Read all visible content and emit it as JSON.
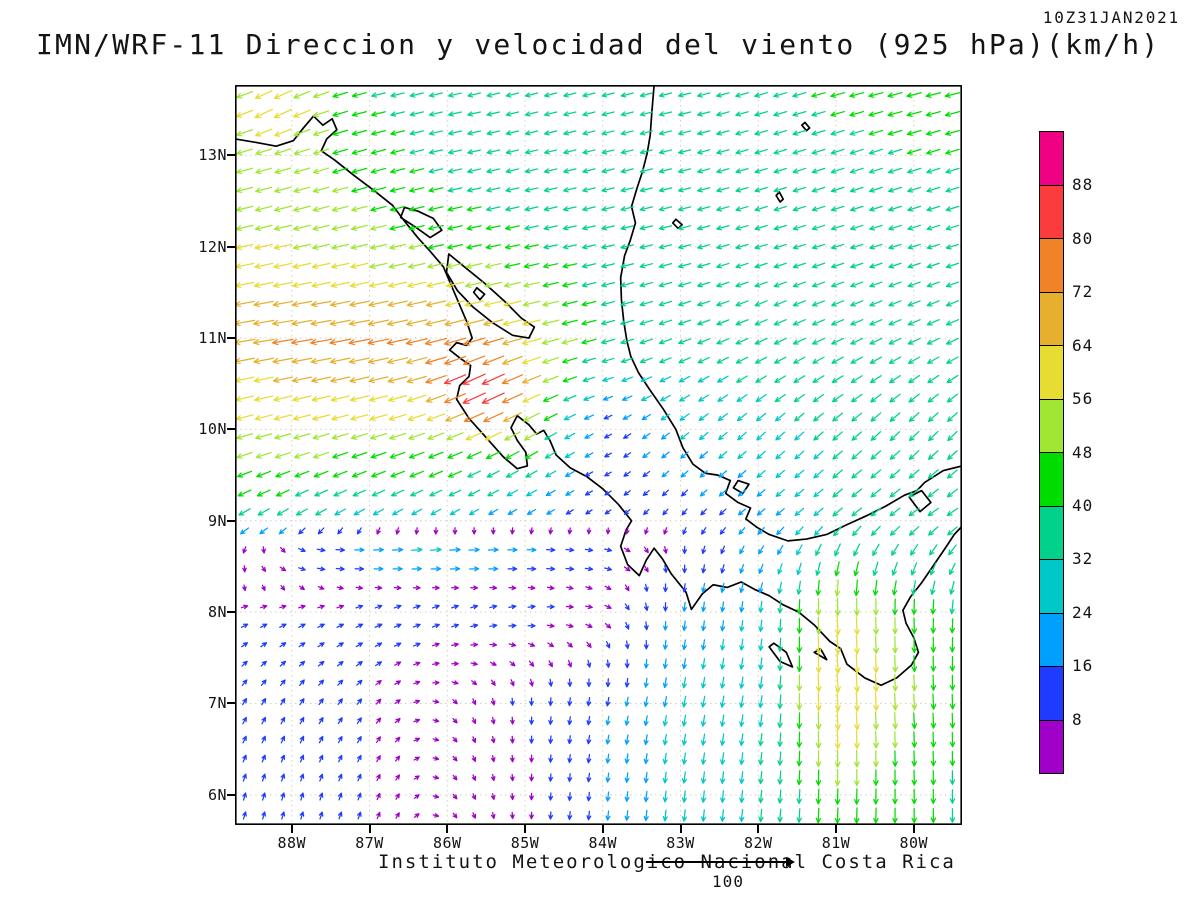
{
  "header": {
    "title": "IMN/WRF-11 Direccion y velocidad del viento (925 hPa)(km/h)",
    "datestamp": "10Z31JAN2021"
  },
  "footer": {
    "caption": "Instituto Meteorologico Nacional Costa Rica",
    "reference_label": "100"
  },
  "axes": {
    "lat_labels": [
      "13N",
      "12N",
      "11N",
      "10N",
      "9N",
      "8N",
      "7N",
      "6N"
    ],
    "lat_values": [
      13,
      12,
      11,
      10,
      9,
      8,
      7,
      6
    ],
    "lon_labels": [
      "88W",
      "87W",
      "86W",
      "85W",
      "84W",
      "83W",
      "82W",
      "81W",
      "80W"
    ],
    "lon_values": [
      -88,
      -87,
      -86,
      -85,
      -84,
      -83,
      -82,
      -81,
      -80
    ]
  },
  "chart_data": {
    "type": "vector_field",
    "variable": "Direccion y velocidad del viento",
    "level": "925 hPa",
    "units": "km/h",
    "reference_speed": 100,
    "domain": {
      "lon_min": -88.73,
      "lon_max": -79.38,
      "lat_min": 5.67,
      "lat_max": 13.77
    },
    "speed_levels": [
      8,
      16,
      24,
      32,
      40,
      48,
      56,
      64,
      72,
      80,
      88
    ],
    "speed_colors": [
      "#a000c8",
      "#1e3cff",
      "#00a0ff",
      "#00c8c8",
      "#00d28c",
      "#00dc00",
      "#a0e632",
      "#e6dc32",
      "#e6af2d",
      "#f08228",
      "#fa3c3c",
      "#f00082"
    ],
    "grid": {
      "lons": [
        -89,
        -88,
        -87,
        -86,
        -85,
        -84,
        -83,
        -82,
        -81,
        -80,
        -79
      ],
      "lats": [
        14,
        13,
        12,
        11,
        10,
        9,
        8,
        7,
        6
      ],
      "u": [
        [
          -40,
          -50,
          -38,
          -35,
          -33,
          -32,
          -33,
          -36,
          -42,
          -45,
          -45
        ],
        [
          -48,
          -48,
          -42,
          -36,
          -33,
          -32,
          -32,
          -33,
          -36,
          -38,
          -38
        ],
        [
          -55,
          -55,
          -50,
          -45,
          -40,
          -35,
          -33,
          -33,
          -33,
          -33,
          -33
        ],
        [
          -70,
          -72,
          -72,
          -74,
          -62,
          -38,
          -33,
          -33,
          -33,
          -33,
          -33
        ],
        [
          -52,
          -52,
          -52,
          -50,
          -45,
          -10,
          -20,
          -22,
          -25,
          -25,
          -25
        ],
        [
          -30,
          -30,
          -28,
          -25,
          -18,
          -8,
          -6,
          -15,
          -25,
          -28,
          -28
        ],
        [
          8,
          8,
          10,
          10,
          10,
          8,
          -2,
          -3,
          0,
          0,
          -5
        ],
        [
          5,
          5,
          5,
          3,
          0,
          -3,
          -5,
          -5,
          0,
          3,
          0
        ],
        [
          3,
          3,
          3,
          2,
          0,
          -2,
          -3,
          -3,
          -2,
          0,
          0
        ]
      ],
      "v": [
        [
          -8,
          -20,
          -8,
          -8,
          -8,
          -8,
          -8,
          -10,
          -10,
          -10,
          -10
        ],
        [
          -12,
          -15,
          -12,
          -8,
          -8,
          -8,
          -8,
          -10,
          -12,
          -12,
          -12
        ],
        [
          -12,
          -12,
          -12,
          -10,
          -8,
          -8,
          -8,
          -10,
          -10,
          -10,
          -10
        ],
        [
          -12,
          -12,
          -14,
          -18,
          -16,
          -10,
          -12,
          -15,
          -15,
          -15,
          -15
        ],
        [
          -14,
          -14,
          -15,
          -18,
          -26,
          -5,
          -16,
          -20,
          -22,
          -25,
          -25
        ],
        [
          -18,
          -18,
          -16,
          -14,
          -10,
          -5,
          -8,
          -12,
          -20,
          -20,
          -18
        ],
        [
          3,
          3,
          4,
          4,
          2,
          -2,
          -18,
          -26,
          -52,
          -46,
          -35
        ],
        [
          8,
          8,
          6,
          -2,
          -10,
          -15,
          -25,
          -30,
          -58,
          -48,
          -40
        ],
        [
          10,
          10,
          8,
          -2,
          -5,
          -18,
          -28,
          -32,
          -45,
          -42,
          -35
        ]
      ]
    },
    "patches": [
      {
        "lon": -85.55,
        "lat": 10.45,
        "rlon": 0.55,
        "rlat": 0.4,
        "u": -82,
        "v": -38
      },
      {
        "lon": -86.2,
        "lat": 8.62,
        "rlon": 2.4,
        "rlat": 0.3,
        "u": 26,
        "v": 2
      },
      {
        "lon": -80.9,
        "lat": 7.3,
        "rlon": 0.5,
        "rlat": 0.9,
        "u": 4,
        "v": -62
      },
      {
        "lon": -88.25,
        "lat": 13.5,
        "rlon": 0.45,
        "rlat": 0.3,
        "u": -58,
        "v": -28
      }
    ],
    "map_outline": {
      "pacific_coast": [
        [
          -88.73,
          13.18
        ],
        [
          -88.45,
          13.14
        ],
        [
          -88.2,
          13.1
        ],
        [
          -87.98,
          13.16
        ],
        [
          -87.85,
          13.3
        ],
        [
          -87.72,
          13.43
        ],
        [
          -87.6,
          13.33
        ],
        [
          -87.48,
          13.4
        ],
        [
          -87.42,
          13.28
        ],
        [
          -87.55,
          13.18
        ],
        [
          -87.62,
          13.05
        ],
        [
          -87.45,
          12.95
        ],
        [
          -87.2,
          12.78
        ],
        [
          -86.95,
          12.62
        ],
        [
          -86.7,
          12.45
        ],
        [
          -86.55,
          12.28
        ],
        [
          -86.38,
          12.1
        ],
        [
          -86.22,
          11.95
        ],
        [
          -86.05,
          11.78
        ],
        [
          -85.95,
          11.58
        ],
        [
          -85.85,
          11.38
        ],
        [
          -85.75,
          11.18
        ],
        [
          -85.68,
          11.0
        ],
        [
          -85.75,
          10.92
        ],
        [
          -85.88,
          10.95
        ],
        [
          -85.97,
          10.87
        ],
        [
          -85.82,
          10.77
        ],
        [
          -85.7,
          10.7
        ],
        [
          -85.72,
          10.58
        ],
        [
          -85.84,
          10.48
        ],
        [
          -85.88,
          10.33
        ],
        [
          -85.72,
          10.12
        ],
        [
          -85.52,
          9.93
        ],
        [
          -85.28,
          9.7
        ],
        [
          -85.1,
          9.57
        ],
        [
          -84.97,
          9.6
        ],
        [
          -84.99,
          9.75
        ],
        [
          -85.1,
          9.88
        ],
        [
          -85.18,
          10.02
        ],
        [
          -85.1,
          10.15
        ],
        [
          -84.95,
          10.05
        ],
        [
          -84.85,
          9.95
        ],
        [
          -84.76,
          9.99
        ],
        [
          -84.68,
          9.88
        ],
        [
          -84.6,
          9.72
        ],
        [
          -84.42,
          9.58
        ],
        [
          -84.2,
          9.48
        ],
        [
          -84.0,
          9.35
        ],
        [
          -83.8,
          9.18
        ],
        [
          -83.63,
          9.0
        ],
        [
          -83.7,
          8.9
        ],
        [
          -83.77,
          8.72
        ],
        [
          -83.68,
          8.52
        ],
        [
          -83.53,
          8.4
        ],
        [
          -83.44,
          8.57
        ],
        [
          -83.34,
          8.7
        ],
        [
          -83.23,
          8.58
        ],
        [
          -83.12,
          8.42
        ],
        [
          -82.93,
          8.22
        ],
        [
          -82.86,
          8.03
        ],
        [
          -82.72,
          8.2
        ],
        [
          -82.58,
          8.3
        ],
        [
          -82.4,
          8.27
        ],
        [
          -82.22,
          8.33
        ],
        [
          -82.05,
          8.25
        ],
        [
          -81.86,
          8.18
        ],
        [
          -81.68,
          8.08
        ],
        [
          -81.48,
          8.0
        ],
        [
          -81.28,
          7.86
        ],
        [
          -81.08,
          7.68
        ],
        [
          -80.94,
          7.6
        ],
        [
          -80.86,
          7.43
        ],
        [
          -80.63,
          7.28
        ],
        [
          -80.42,
          7.2
        ],
        [
          -80.22,
          7.28
        ],
        [
          -80.03,
          7.42
        ],
        [
          -79.94,
          7.56
        ],
        [
          -80.0,
          7.72
        ],
        [
          -80.1,
          7.88
        ],
        [
          -80.14,
          8.02
        ],
        [
          -80.04,
          8.17
        ],
        [
          -79.9,
          8.32
        ],
        [
          -79.74,
          8.52
        ],
        [
          -79.58,
          8.72
        ],
        [
          -79.48,
          8.85
        ],
        [
          -79.38,
          8.94
        ]
      ],
      "caribbean_coast": [
        [
          -79.38,
          9.6
        ],
        [
          -79.62,
          9.55
        ],
        [
          -79.86,
          9.42
        ],
        [
          -79.96,
          9.33
        ],
        [
          -80.12,
          9.28
        ],
        [
          -80.36,
          9.16
        ],
        [
          -80.62,
          9.05
        ],
        [
          -80.88,
          8.95
        ],
        [
          -81.12,
          8.85
        ],
        [
          -81.38,
          8.8
        ],
        [
          -81.62,
          8.78
        ],
        [
          -81.86,
          8.85
        ],
        [
          -82.02,
          8.93
        ],
        [
          -82.16,
          9.02
        ],
        [
          -82.1,
          9.14
        ],
        [
          -82.26,
          9.2
        ],
        [
          -82.42,
          9.3
        ],
        [
          -82.36,
          9.44
        ],
        [
          -82.52,
          9.5
        ],
        [
          -82.68,
          9.52
        ],
        [
          -82.84,
          9.62
        ],
        [
          -82.97,
          9.8
        ],
        [
          -83.06,
          10.0
        ],
        [
          -83.22,
          10.22
        ],
        [
          -83.4,
          10.44
        ],
        [
          -83.54,
          10.62
        ],
        [
          -83.64,
          10.8
        ],
        [
          -83.69,
          10.97
        ],
        [
          -83.73,
          11.18
        ],
        [
          -83.76,
          11.42
        ],
        [
          -83.77,
          11.66
        ],
        [
          -83.72,
          11.9
        ],
        [
          -83.65,
          12.06
        ],
        [
          -83.58,
          12.26
        ],
        [
          -83.63,
          12.44
        ],
        [
          -83.56,
          12.64
        ],
        [
          -83.49,
          12.82
        ],
        [
          -83.43,
          13.02
        ],
        [
          -83.39,
          13.22
        ],
        [
          -83.37,
          13.46
        ],
        [
          -83.34,
          13.77
        ]
      ],
      "lake_managua": [
        [
          -86.6,
          12.32
        ],
        [
          -86.4,
          12.21
        ],
        [
          -86.22,
          12.1
        ],
        [
          -86.07,
          12.18
        ],
        [
          -86.18,
          12.31
        ],
        [
          -86.38,
          12.39
        ],
        [
          -86.55,
          12.43
        ],
        [
          -86.6,
          12.32
        ]
      ],
      "lake_nicaragua": [
        [
          -85.98,
          11.92
        ],
        [
          -85.78,
          11.78
        ],
        [
          -85.52,
          11.6
        ],
        [
          -85.26,
          11.4
        ],
        [
          -85.05,
          11.22
        ],
        [
          -84.88,
          11.12
        ],
        [
          -84.95,
          11.0
        ],
        [
          -85.16,
          11.03
        ],
        [
          -85.42,
          11.17
        ],
        [
          -85.67,
          11.34
        ],
        [
          -85.87,
          11.52
        ],
        [
          -86.01,
          11.72
        ],
        [
          -85.98,
          11.92
        ]
      ],
      "ometepe_island": [
        [
          -85.62,
          11.55
        ],
        [
          -85.52,
          11.48
        ],
        [
          -85.58,
          11.42
        ],
        [
          -85.66,
          11.5
        ],
        [
          -85.62,
          11.55
        ]
      ],
      "gatun_lake": [
        [
          -80.06,
          9.26
        ],
        [
          -79.92,
          9.1
        ],
        [
          -79.78,
          9.2
        ],
        [
          -79.9,
          9.33
        ],
        [
          -80.06,
          9.26
        ]
      ],
      "coiba_island": [
        [
          -81.86,
          7.62
        ],
        [
          -81.72,
          7.46
        ],
        [
          -81.56,
          7.4
        ],
        [
          -81.64,
          7.56
        ],
        [
          -81.8,
          7.66
        ],
        [
          -81.86,
          7.62
        ]
      ],
      "cebaco_island": [
        [
          -81.28,
          7.56
        ],
        [
          -81.12,
          7.48
        ],
        [
          -81.2,
          7.6
        ],
        [
          -81.28,
          7.56
        ]
      ],
      "bocas_islands": [
        [
          -82.32,
          9.36
        ],
        [
          -82.2,
          9.3
        ],
        [
          -82.12,
          9.4
        ],
        [
          -82.26,
          9.44
        ],
        [
          -82.32,
          9.36
        ]
      ],
      "corn_island": [
        [
          -83.06,
          12.3
        ],
        [
          -82.98,
          12.24
        ],
        [
          -83.03,
          12.2
        ],
        [
          -83.1,
          12.26
        ],
        [
          -83.06,
          12.3
        ]
      ],
      "providencia_island": [
        [
          -81.4,
          13.36
        ],
        [
          -81.34,
          13.3
        ],
        [
          -81.38,
          13.27
        ],
        [
          -81.44,
          13.33
        ],
        [
          -81.4,
          13.36
        ]
      ],
      "san_andres_island": [
        [
          -81.73,
          12.6
        ],
        [
          -81.68,
          12.52
        ],
        [
          -81.72,
          12.49
        ],
        [
          -81.77,
          12.56
        ],
        [
          -81.73,
          12.6
        ]
      ]
    }
  }
}
